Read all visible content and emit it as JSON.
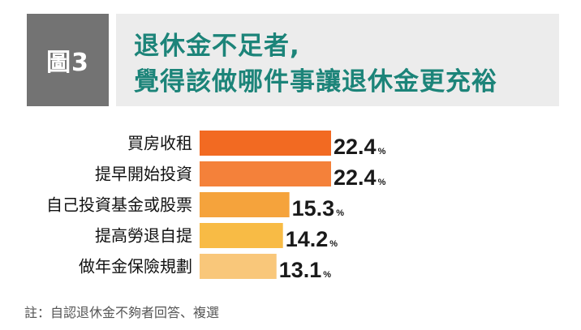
{
  "header": {
    "figure_label": "圖3",
    "title_line1": "退休金不足者,",
    "title_line2": "覺得該做哪件事讓退休金更充裕"
  },
  "colors": {
    "badge_bg": "#737373",
    "title_bg": "#ececec",
    "title_text": "#1c8479"
  },
  "chart_data": {
    "type": "bar",
    "orientation": "horizontal",
    "categories": [
      "買房收租",
      "提早開始投資",
      "自己投資基金或股票",
      "提高勞退自提",
      "做年金保險規劃"
    ],
    "values": [
      22.4,
      22.4,
      15.3,
      14.2,
      13.1
    ],
    "value_labels": [
      "22.4",
      "22.4",
      "15.3",
      "14.2",
      "13.1"
    ],
    "unit": "%",
    "colors": [
      "#f26a22",
      "#f4813a",
      "#f5a33c",
      "#f8bb45",
      "#f9c77a"
    ],
    "xlim": [
      0,
      22.4
    ],
    "grid": false,
    "legend": "none"
  },
  "footnote": "註：自認退休金不夠者回答、複選"
}
